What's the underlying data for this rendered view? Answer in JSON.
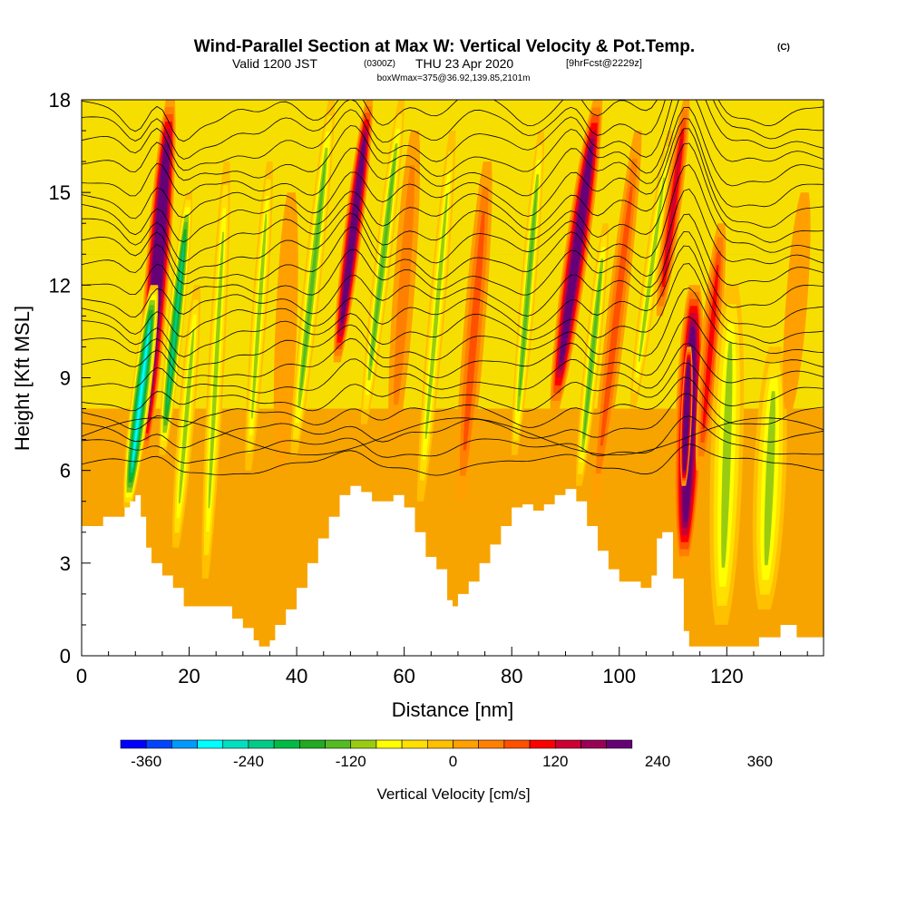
{
  "title": {
    "main": "Wind-Parallel Section at Max W: Vertical Velocity & Pot.Temp.",
    "copyright": "(C)",
    "valid_prefix": "Valid 1200 JST",
    "utc": "(0300Z)",
    "valid_date": "THU 23 Apr 2020",
    "forecast": "[9hrFcst@2229z]",
    "box_info": "boxWmax=375@36.92,139.85,2101m"
  },
  "chart_data": {
    "type": "heatmap",
    "xlabel": "Distance [nm]",
    "ylabel": "Height [Kft MSL]",
    "xlim": [
      0,
      138
    ],
    "ylim": [
      0,
      18
    ],
    "x_ticks": [
      0,
      20,
      40,
      60,
      80,
      100,
      120
    ],
    "y_ticks": [
      0,
      3,
      6,
      9,
      12,
      15,
      18
    ],
    "field": "Vertical Velocity",
    "overlay": "Potential temperature contours",
    "colorbar": {
      "label": "Vertical Velocity [cm/s]",
      "levels": [
        -390,
        -360,
        -330,
        -300,
        -270,
        -240,
        -210,
        -180,
        -150,
        -120,
        -90,
        -60,
        -30,
        0,
        30,
        60,
        90,
        120,
        150,
        180,
        210,
        240,
        270,
        300,
        330,
        360,
        390
      ],
      "colors": [
        "#0000ff",
        "#0044ff",
        "#0099ff",
        "#00ffff",
        "#00e0c0",
        "#00cc88",
        "#00bb44",
        "#22aa22",
        "#55bb22",
        "#99cc11",
        "#ffff00",
        "#ffe000",
        "#ffc000",
        "#ffa000",
        "#ff8000",
        "#ff5000",
        "#ff0000",
        "#cc0033",
        "#990055",
        "#660077"
      ],
      "tick_labels": [
        "-360",
        "-240",
        "-120",
        "0",
        "120",
        "240",
        "360"
      ]
    },
    "terrain_kft": [
      [
        0,
        4.2
      ],
      [
        3,
        4.2
      ],
      [
        4,
        4.5
      ],
      [
        7,
        4.5
      ],
      [
        8,
        4.8
      ],
      [
        9,
        5.0
      ],
      [
        10,
        5.2
      ],
      [
        11,
        4.5
      ],
      [
        12,
        3.5
      ],
      [
        13,
        3.0
      ],
      [
        15,
        2.6
      ],
      [
        17,
        2.2
      ],
      [
        19,
        1.6
      ],
      [
        23,
        1.6
      ],
      [
        26,
        1.6
      ],
      [
        28,
        1.2
      ],
      [
        30,
        0.9
      ],
      [
        32,
        0.5
      ],
      [
        33,
        0.3
      ],
      [
        35,
        0.5
      ],
      [
        36,
        1.0
      ],
      [
        38,
        1.5
      ],
      [
        40,
        2.2
      ],
      [
        42,
        3.0
      ],
      [
        44,
        3.8
      ],
      [
        46,
        4.5
      ],
      [
        48,
        5.2
      ],
      [
        50,
        5.5
      ],
      [
        52,
        5.3
      ],
      [
        54,
        5.0
      ],
      [
        56,
        5.0
      ],
      [
        58,
        5.2
      ],
      [
        60,
        4.8
      ],
      [
        62,
        4.0
      ],
      [
        64,
        3.2
      ],
      [
        66,
        2.8
      ],
      [
        68,
        1.8
      ],
      [
        69,
        1.6
      ],
      [
        70,
        2.0
      ],
      [
        72,
        2.4
      ],
      [
        74,
        3.0
      ],
      [
        76,
        3.6
      ],
      [
        78,
        4.2
      ],
      [
        80,
        4.8
      ],
      [
        82,
        4.9
      ],
      [
        84,
        4.7
      ],
      [
        86,
        4.9
      ],
      [
        88,
        5.2
      ],
      [
        90,
        5.4
      ],
      [
        92,
        5.0
      ],
      [
        94,
        4.2
      ],
      [
        96,
        3.4
      ],
      [
        98,
        2.8
      ],
      [
        100,
        2.4
      ],
      [
        102,
        2.4
      ],
      [
        104,
        2.2
      ],
      [
        106,
        2.6
      ],
      [
        107,
        3.8
      ],
      [
        108,
        4.0
      ],
      [
        110,
        2.5
      ],
      [
        112,
        0.8
      ],
      [
        113,
        0.3
      ],
      [
        120,
        0.3
      ],
      [
        125,
        0.3
      ],
      [
        126,
        0.6
      ],
      [
        130,
        1.0
      ],
      [
        132,
        1.0
      ],
      [
        133,
        0.6
      ],
      [
        138,
        0.6
      ]
    ],
    "cells": [
      {
        "x": 14,
        "ztop": 18,
        "zbot": 6.5,
        "width": 2.2,
        "tilt": 5,
        "w": 330
      },
      {
        "x": 11,
        "ztop": 12,
        "zbot": 4.8,
        "width": 1.8,
        "tilt": 5,
        "w": -300
      },
      {
        "x": 17.5,
        "ztop": 15,
        "zbot": 6.5,
        "width": 1.5,
        "tilt": 5,
        "w": -240
      },
      {
        "x": 19.5,
        "ztop": 12,
        "zbot": 3.5,
        "width": 1.5,
        "tilt": 4,
        "w": -110
      },
      {
        "x": 25,
        "ztop": 16,
        "zbot": 2.5,
        "width": 1.5,
        "tilt": 4,
        "w": -130
      },
      {
        "x": 33,
        "ztop": 16,
        "zbot": 6.0,
        "width": 1.4,
        "tilt": 4,
        "w": -120
      },
      {
        "x": 38,
        "ztop": 15,
        "zbot": 6.0,
        "width": 2.0,
        "tilt": 2,
        "w": 30
      },
      {
        "x": 43,
        "ztop": 18,
        "zbot": 6.5,
        "width": 1.6,
        "tilt": 7,
        "w": -140
      },
      {
        "x": 50.5,
        "ztop": 18,
        "zbot": 9.5,
        "width": 1.7,
        "tilt": 6,
        "w": 270
      },
      {
        "x": 56,
        "ztop": 18,
        "zbot": 7.5,
        "width": 1.5,
        "tilt": 7,
        "w": -150
      },
      {
        "x": 60,
        "ztop": 17,
        "zbot": 7.0,
        "width": 2.0,
        "tilt": 4,
        "w": 60
      },
      {
        "x": 66,
        "ztop": 17,
        "zbot": 5.0,
        "width": 1.5,
        "tilt": 6,
        "w": -130
      },
      {
        "x": 73,
        "ztop": 16,
        "zbot": 5.0,
        "width": 2.0,
        "tilt": 5,
        "w": 90
      },
      {
        "x": 83,
        "ztop": 17,
        "zbot": 6.5,
        "width": 1.4,
        "tilt": 5,
        "w": -160
      },
      {
        "x": 92,
        "ztop": 18,
        "zbot": 8.0,
        "width": 2.2,
        "tilt": 8,
        "w": 280
      },
      {
        "x": 95,
        "ztop": 14,
        "zbot": 5.5,
        "width": 1.4,
        "tilt": 5,
        "w": -160
      },
      {
        "x": 99.5,
        "ztop": 17,
        "zbot": 5.0,
        "width": 1.8,
        "tilt": 8,
        "w": 100
      },
      {
        "x": 106,
        "ztop": 17,
        "zbot": 8.0,
        "width": 1.4,
        "tilt": 7,
        "w": -130
      },
      {
        "x": 110,
        "ztop": 18,
        "zbot": 11,
        "width": 1.5,
        "tilt": 5,
        "w": 150
      },
      {
        "x": 113,
        "ztop": 12,
        "zbot": 3.0,
        "width": 2.6,
        "tilt": 2,
        "w": 280
      },
      {
        "x": 112.5,
        "ztop": 10,
        "zbot": 5.5,
        "width": 1.0,
        "tilt": 1,
        "w": 370
      },
      {
        "x": 117,
        "ztop": 14,
        "zbot": 6.0,
        "width": 1.8,
        "tilt": 4,
        "w": 130
      },
      {
        "x": 120,
        "ztop": 12,
        "zbot": 1.0,
        "width": 3.0,
        "tilt": 2,
        "w": -110
      },
      {
        "x": 128,
        "ztop": 10,
        "zbot": 1.5,
        "width": 3.0,
        "tilt": 2,
        "w": -110
      },
      {
        "x": 133,
        "ztop": 15,
        "zbot": 8.0,
        "width": 2.0,
        "tilt": 3,
        "w": 40
      }
    ],
    "background": [
      {
        "ztop": 18,
        "zbot": 13,
        "w": -60
      },
      {
        "ztop": 13,
        "zbot": 8,
        "w": -40
      },
      {
        "ztop": 8,
        "zbot": 0,
        "w": 15
      }
    ]
  }
}
